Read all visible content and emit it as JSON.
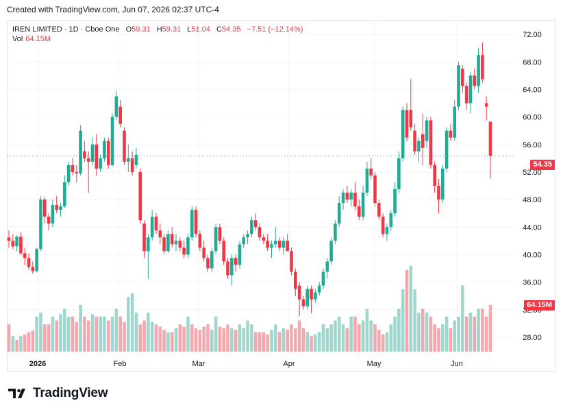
{
  "caption": "Created with TradingView.com, Jun 07, 2026 02:37 UTC-4",
  "brand": {
    "name": "TradingView"
  },
  "legend": {
    "symbol": "IREN LIMITED · 1D · Cboe One",
    "open_label": "O",
    "open": "59.31",
    "high_label": "H",
    "high": "59.31",
    "low_label": "L",
    "low": "51.04",
    "close_label": "C",
    "close": "54.35",
    "change": "−7.51 (−12.14%)",
    "vol_label": "Vol",
    "vol": "64.15M"
  },
  "price_tag": "54.35",
  "volume_tag": "64.15M",
  "colors": {
    "up": "#22ab94",
    "down": "#f23645",
    "up_vol": "#9fd6cd",
    "down_vol": "#f4a8ae",
    "grid": "#f0f3fa",
    "text": "#131722"
  },
  "chart_data": {
    "type": "candlestick",
    "x_labels": [
      "2026",
      "Feb",
      "Mar",
      "Apr",
      "May",
      "Jun"
    ],
    "y_ticks": [
      28,
      32,
      36,
      40,
      44,
      48,
      52,
      56,
      60,
      64,
      68,
      72
    ],
    "ylim": [
      26,
      74
    ],
    "last_price": 54.35,
    "candles": [
      {
        "o": 42.5,
        "h": 43.5,
        "l": 41.0,
        "c": 42.0
      },
      {
        "o": 42.0,
        "h": 43.0,
        "l": 40.8,
        "c": 41.2
      },
      {
        "o": 41.2,
        "h": 42.8,
        "l": 40.5,
        "c": 42.6
      },
      {
        "o": 42.6,
        "h": 43.2,
        "l": 40.0,
        "c": 40.2
      },
      {
        "o": 40.2,
        "h": 41.0,
        "l": 38.5,
        "c": 39.5
      },
      {
        "o": 39.5,
        "h": 40.2,
        "l": 37.8,
        "c": 38.2
      },
      {
        "o": 38.2,
        "h": 39.0,
        "l": 37.2,
        "c": 37.6
      },
      {
        "o": 37.6,
        "h": 41.0,
        "l": 37.4,
        "c": 40.8
      },
      {
        "o": 40.8,
        "h": 48.5,
        "l": 40.5,
        "c": 48.0
      },
      {
        "o": 48.0,
        "h": 48.4,
        "l": 44.5,
        "c": 45.5
      },
      {
        "o": 45.5,
        "h": 46.0,
        "l": 43.5,
        "c": 44.5
      },
      {
        "o": 44.5,
        "h": 48.0,
        "l": 44.0,
        "c": 47.2
      },
      {
        "o": 47.2,
        "h": 48.5,
        "l": 46.0,
        "c": 46.5
      },
      {
        "o": 46.5,
        "h": 47.5,
        "l": 45.5,
        "c": 47.0
      },
      {
        "o": 47.0,
        "h": 51.5,
        "l": 46.8,
        "c": 50.5
      },
      {
        "o": 50.5,
        "h": 53.5,
        "l": 50.0,
        "c": 53.0
      },
      {
        "o": 53.0,
        "h": 54.0,
        "l": 51.5,
        "c": 52.0
      },
      {
        "o": 52.0,
        "h": 53.0,
        "l": 50.5,
        "c": 51.8
      },
      {
        "o": 51.8,
        "h": 58.8,
        "l": 51.5,
        "c": 58.0
      },
      {
        "o": 55.0,
        "h": 56.5,
        "l": 53.5,
        "c": 54.0
      },
      {
        "o": 54.0,
        "h": 55.0,
        "l": 49.0,
        "c": 53.5
      },
      {
        "o": 53.5,
        "h": 57.0,
        "l": 53.0,
        "c": 56.0
      },
      {
        "o": 56.0,
        "h": 57.5,
        "l": 51.5,
        "c": 52.5
      },
      {
        "o": 52.5,
        "h": 54.5,
        "l": 52.0,
        "c": 54.0
      },
      {
        "o": 54.0,
        "h": 57.0,
        "l": 53.5,
        "c": 56.5
      },
      {
        "o": 56.5,
        "h": 57.0,
        "l": 52.5,
        "c": 53.0
      },
      {
        "o": 53.0,
        "h": 60.5,
        "l": 52.8,
        "c": 60.0
      },
      {
        "o": 60.0,
        "h": 63.8,
        "l": 59.5,
        "c": 63.0
      },
      {
        "o": 61.5,
        "h": 62.5,
        "l": 58.5,
        "c": 59.0
      },
      {
        "o": 58.0,
        "h": 58.5,
        "l": 53.0,
        "c": 53.5
      },
      {
        "o": 53.5,
        "h": 56.0,
        "l": 52.0,
        "c": 54.0
      },
      {
        "o": 54.0,
        "h": 55.0,
        "l": 51.5,
        "c": 52.0
      },
      {
        "o": 53.0,
        "h": 55.5,
        "l": 52.5,
        "c": 54.5
      },
      {
        "o": 52.0,
        "h": 52.5,
        "l": 44.5,
        "c": 45.0
      },
      {
        "o": 44.5,
        "h": 45.0,
        "l": 39.5,
        "c": 40.5
      },
      {
        "o": 40.5,
        "h": 43.0,
        "l": 36.5,
        "c": 42.5
      },
      {
        "o": 42.5,
        "h": 46.5,
        "l": 42.0,
        "c": 45.5
      },
      {
        "o": 45.5,
        "h": 46.0,
        "l": 43.0,
        "c": 43.5
      },
      {
        "o": 43.5,
        "h": 44.5,
        "l": 41.5,
        "c": 42.5
      },
      {
        "o": 42.5,
        "h": 43.0,
        "l": 40.0,
        "c": 40.5
      },
      {
        "o": 40.5,
        "h": 43.5,
        "l": 40.2,
        "c": 43.0
      },
      {
        "o": 43.0,
        "h": 44.0,
        "l": 41.0,
        "c": 41.5
      },
      {
        "o": 41.5,
        "h": 43.0,
        "l": 40.5,
        "c": 42.0
      },
      {
        "o": 42.0,
        "h": 42.5,
        "l": 40.5,
        "c": 41.0
      },
      {
        "o": 41.0,
        "h": 42.0,
        "l": 39.5,
        "c": 40.0
      },
      {
        "o": 40.0,
        "h": 43.0,
        "l": 39.5,
        "c": 42.5
      },
      {
        "o": 42.5,
        "h": 47.0,
        "l": 42.0,
        "c": 46.5
      },
      {
        "o": 46.5,
        "h": 47.0,
        "l": 42.5,
        "c": 43.0
      },
      {
        "o": 43.0,
        "h": 43.5,
        "l": 40.5,
        "c": 41.0
      },
      {
        "o": 41.0,
        "h": 42.0,
        "l": 39.0,
        "c": 39.5
      },
      {
        "o": 39.5,
        "h": 40.0,
        "l": 37.5,
        "c": 38.0
      },
      {
        "o": 38.0,
        "h": 41.0,
        "l": 37.5,
        "c": 40.5
      },
      {
        "o": 40.5,
        "h": 44.5,
        "l": 40.0,
        "c": 44.0
      },
      {
        "o": 44.0,
        "h": 44.5,
        "l": 41.5,
        "c": 42.0
      },
      {
        "o": 42.0,
        "h": 42.5,
        "l": 38.5,
        "c": 39.0
      },
      {
        "o": 39.0,
        "h": 39.5,
        "l": 36.5,
        "c": 37.0
      },
      {
        "o": 37.0,
        "h": 40.0,
        "l": 35.5,
        "c": 39.5
      },
      {
        "o": 39.5,
        "h": 40.0,
        "l": 37.5,
        "c": 38.5
      },
      {
        "o": 38.5,
        "h": 42.0,
        "l": 38.0,
        "c": 41.5
      },
      {
        "o": 41.5,
        "h": 43.0,
        "l": 41.0,
        "c": 42.5
      },
      {
        "o": 42.5,
        "h": 43.5,
        "l": 41.5,
        "c": 43.0
      },
      {
        "o": 43.0,
        "h": 45.5,
        "l": 42.5,
        "c": 45.0
      },
      {
        "o": 45.0,
        "h": 46.0,
        "l": 43.5,
        "c": 44.0
      },
      {
        "o": 44.0,
        "h": 44.5,
        "l": 42.0,
        "c": 42.5
      },
      {
        "o": 42.5,
        "h": 43.0,
        "l": 41.5,
        "c": 42.0
      },
      {
        "o": 42.0,
        "h": 43.0,
        "l": 40.5,
        "c": 41.0
      },
      {
        "o": 41.0,
        "h": 42.0,
        "l": 39.5,
        "c": 41.5
      },
      {
        "o": 41.5,
        "h": 44.0,
        "l": 41.0,
        "c": 42.0
      },
      {
        "o": 42.0,
        "h": 42.5,
        "l": 40.5,
        "c": 41.0
      },
      {
        "o": 41.0,
        "h": 42.5,
        "l": 40.0,
        "c": 42.0
      },
      {
        "o": 42.0,
        "h": 43.0,
        "l": 40.5,
        "c": 40.5
      },
      {
        "o": 40.5,
        "h": 41.0,
        "l": 37.0,
        "c": 37.5
      },
      {
        "o": 37.5,
        "h": 38.0,
        "l": 34.0,
        "c": 35.0
      },
      {
        "o": 35.5,
        "h": 36.0,
        "l": 31.0,
        "c": 33.5
      },
      {
        "o": 33.5,
        "h": 34.0,
        "l": 32.0,
        "c": 32.5
      },
      {
        "o": 32.5,
        "h": 35.5,
        "l": 32.0,
        "c": 35.0
      },
      {
        "o": 35.0,
        "h": 35.5,
        "l": 31.5,
        "c": 33.5
      },
      {
        "o": 33.5,
        "h": 35.0,
        "l": 33.0,
        "c": 34.5
      },
      {
        "o": 34.5,
        "h": 36.0,
        "l": 34.0,
        "c": 35.5
      },
      {
        "o": 35.5,
        "h": 38.0,
        "l": 35.0,
        "c": 37.5
      },
      {
        "o": 37.5,
        "h": 39.5,
        "l": 36.5,
        "c": 39.0
      },
      {
        "o": 39.0,
        "h": 42.5,
        "l": 38.5,
        "c": 42.0
      },
      {
        "o": 42.0,
        "h": 45.0,
        "l": 41.5,
        "c": 44.5
      },
      {
        "o": 44.5,
        "h": 48.5,
        "l": 44.0,
        "c": 47.5
      },
      {
        "o": 47.5,
        "h": 49.5,
        "l": 46.5,
        "c": 49.0
      },
      {
        "o": 49.0,
        "h": 50.0,
        "l": 47.5,
        "c": 48.0
      },
      {
        "o": 48.0,
        "h": 49.5,
        "l": 47.0,
        "c": 49.0
      },
      {
        "o": 49.0,
        "h": 50.5,
        "l": 46.5,
        "c": 47.0
      },
      {
        "o": 47.0,
        "h": 48.0,
        "l": 45.0,
        "c": 45.5
      },
      {
        "o": 45.5,
        "h": 50.0,
        "l": 45.0,
        "c": 49.0
      },
      {
        "o": 49.0,
        "h": 53.5,
        "l": 48.5,
        "c": 52.5
      },
      {
        "o": 52.5,
        "h": 54.0,
        "l": 51.0,
        "c": 51.5
      },
      {
        "o": 51.5,
        "h": 52.0,
        "l": 47.0,
        "c": 47.5
      },
      {
        "o": 47.5,
        "h": 48.0,
        "l": 45.0,
        "c": 45.5
      },
      {
        "o": 45.5,
        "h": 46.0,
        "l": 42.5,
        "c": 43.0
      },
      {
        "o": 43.0,
        "h": 44.5,
        "l": 42.0,
        "c": 44.0
      },
      {
        "o": 44.0,
        "h": 46.5,
        "l": 43.5,
        "c": 46.0
      },
      {
        "o": 46.0,
        "h": 50.5,
        "l": 45.5,
        "c": 49.5
      },
      {
        "o": 49.5,
        "h": 55.0,
        "l": 49.0,
        "c": 54.0
      },
      {
        "o": 54.0,
        "h": 61.5,
        "l": 53.5,
        "c": 61.0
      },
      {
        "o": 61.0,
        "h": 62.0,
        "l": 56.5,
        "c": 57.0
      },
      {
        "o": 61.0,
        "h": 65.5,
        "l": 58.0,
        "c": 58.5
      },
      {
        "o": 58.0,
        "h": 59.0,
        "l": 54.5,
        "c": 55.0
      },
      {
        "o": 55.0,
        "h": 57.0,
        "l": 53.5,
        "c": 56.5
      },
      {
        "o": 57.5,
        "h": 60.5,
        "l": 53.0,
        "c": 55.5
      },
      {
        "o": 56.5,
        "h": 60.0,
        "l": 55.5,
        "c": 59.5
      },
      {
        "o": 59.5,
        "h": 60.0,
        "l": 52.5,
        "c": 53.0
      },
      {
        "o": 53.0,
        "h": 53.5,
        "l": 49.0,
        "c": 50.0
      },
      {
        "o": 50.0,
        "h": 51.0,
        "l": 46.0,
        "c": 48.0
      },
      {
        "o": 48.0,
        "h": 53.0,
        "l": 47.5,
        "c": 52.5
      },
      {
        "o": 52.5,
        "h": 58.5,
        "l": 52.0,
        "c": 58.0
      },
      {
        "o": 58.0,
        "h": 59.0,
        "l": 56.5,
        "c": 57.0
      },
      {
        "o": 57.0,
        "h": 62.5,
        "l": 56.5,
        "c": 61.5
      },
      {
        "o": 61.5,
        "h": 68.0,
        "l": 61.0,
        "c": 67.5
      },
      {
        "o": 67.0,
        "h": 67.5,
        "l": 63.5,
        "c": 64.5
      },
      {
        "o": 64.5,
        "h": 65.0,
        "l": 61.0,
        "c": 62.0
      },
      {
        "o": 62.0,
        "h": 66.5,
        "l": 60.5,
        "c": 66.0
      },
      {
        "o": 66.0,
        "h": 67.0,
        "l": 64.0,
        "c": 64.5
      },
      {
        "o": 64.5,
        "h": 70.0,
        "l": 63.5,
        "c": 69.0
      },
      {
        "o": 69.0,
        "h": 70.8,
        "l": 65.0,
        "c": 65.5
      },
      {
        "o": 62.0,
        "h": 63.0,
        "l": 59.5,
        "c": 61.5
      },
      {
        "o": 59.31,
        "h": 59.31,
        "l": 51.04,
        "c": 54.35
      }
    ],
    "volume_ylim": [
      0,
      11
    ],
    "volumes": [
      {
        "v": 3.5,
        "up": false
      },
      {
        "v": 2.0,
        "up": true
      },
      {
        "v": 1.5,
        "up": false
      },
      {
        "v": 2.0,
        "up": true
      },
      {
        "v": 2.2,
        "up": false
      },
      {
        "v": 2.5,
        "up": false
      },
      {
        "v": 2.7,
        "up": false
      },
      {
        "v": 4.5,
        "up": true
      },
      {
        "v": 5.0,
        "up": true
      },
      {
        "v": 3.5,
        "up": false
      },
      {
        "v": 3.5,
        "up": false
      },
      {
        "v": 4.5,
        "up": true
      },
      {
        "v": 4.0,
        "up": false
      },
      {
        "v": 4.8,
        "up": true
      },
      {
        "v": 5.5,
        "up": true
      },
      {
        "v": 4.5,
        "up": true
      },
      {
        "v": 4.5,
        "up": false
      },
      {
        "v": 3.8,
        "up": false
      },
      {
        "v": 6.0,
        "up": true
      },
      {
        "v": 4.5,
        "up": false
      },
      {
        "v": 4.0,
        "up": false
      },
      {
        "v": 4.8,
        "up": true
      },
      {
        "v": 4.5,
        "up": false
      },
      {
        "v": 4.5,
        "up": true
      },
      {
        "v": 4.5,
        "up": true
      },
      {
        "v": 4.0,
        "up": false
      },
      {
        "v": 4.5,
        "up": true
      },
      {
        "v": 5.5,
        "up": true
      },
      {
        "v": 4.5,
        "up": false
      },
      {
        "v": 3.8,
        "up": false
      },
      {
        "v": 7.0,
        "up": true
      },
      {
        "v": 7.5,
        "up": true
      },
      {
        "v": 5.0,
        "up": true
      },
      {
        "v": 3.5,
        "up": false
      },
      {
        "v": 4.0,
        "up": false
      },
      {
        "v": 5.0,
        "up": true
      },
      {
        "v": 3.8,
        "up": true
      },
      {
        "v": 3.5,
        "up": false
      },
      {
        "v": 3.2,
        "up": false
      },
      {
        "v": 2.8,
        "up": false
      },
      {
        "v": 2.5,
        "up": true
      },
      {
        "v": 2.5,
        "up": false
      },
      {
        "v": 3.0,
        "up": true
      },
      {
        "v": 3.5,
        "up": false
      },
      {
        "v": 3.2,
        "up": false
      },
      {
        "v": 4.5,
        "up": true
      },
      {
        "v": 3.5,
        "up": false
      },
      {
        "v": 3.0,
        "up": false
      },
      {
        "v": 2.8,
        "up": false
      },
      {
        "v": 3.2,
        "up": false
      },
      {
        "v": 3.5,
        "up": false
      },
      {
        "v": 2.8,
        "up": true
      },
      {
        "v": 4.5,
        "up": true
      },
      {
        "v": 3.2,
        "up": false
      },
      {
        "v": 3.0,
        "up": false
      },
      {
        "v": 3.5,
        "up": false
      },
      {
        "v": 3.0,
        "up": true
      },
      {
        "v": 2.8,
        "up": false
      },
      {
        "v": 3.5,
        "up": true
      },
      {
        "v": 3.0,
        "up": true
      },
      {
        "v": 4.0,
        "up": true
      },
      {
        "v": 3.5,
        "up": true
      },
      {
        "v": 2.5,
        "up": false
      },
      {
        "v": 2.5,
        "up": false
      },
      {
        "v": 2.5,
        "up": false
      },
      {
        "v": 2.2,
        "up": false
      },
      {
        "v": 2.8,
        "up": true
      },
      {
        "v": 3.5,
        "up": true
      },
      {
        "v": 2.5,
        "up": false
      },
      {
        "v": 3.0,
        "up": true
      },
      {
        "v": 2.8,
        "up": false
      },
      {
        "v": 3.5,
        "up": false
      },
      {
        "v": 3.0,
        "up": false
      },
      {
        "v": 4.0,
        "up": false
      },
      {
        "v": 3.0,
        "up": false
      },
      {
        "v": 2.5,
        "up": true
      },
      {
        "v": 2.0,
        "up": false
      },
      {
        "v": 2.2,
        "up": true
      },
      {
        "v": 2.5,
        "up": true
      },
      {
        "v": 3.5,
        "up": true
      },
      {
        "v": 3.0,
        "up": true
      },
      {
        "v": 3.5,
        "up": true
      },
      {
        "v": 4.0,
        "up": true
      },
      {
        "v": 4.5,
        "up": true
      },
      {
        "v": 3.5,
        "up": true
      },
      {
        "v": 3.0,
        "up": false
      },
      {
        "v": 4.5,
        "up": true
      },
      {
        "v": 4.5,
        "up": false
      },
      {
        "v": 3.5,
        "up": false
      },
      {
        "v": 4.0,
        "up": true
      },
      {
        "v": 5.5,
        "up": true
      },
      {
        "v": 4.0,
        "up": true
      },
      {
        "v": 3.5,
        "up": false
      },
      {
        "v": 2.8,
        "up": false
      },
      {
        "v": 2.2,
        "up": false
      },
      {
        "v": 2.5,
        "up": true
      },
      {
        "v": 3.5,
        "up": true
      },
      {
        "v": 4.5,
        "up": true
      },
      {
        "v": 5.5,
        "up": true
      },
      {
        "v": 8.0,
        "up": true
      },
      {
        "v": 10.5,
        "up": false
      },
      {
        "v": 11.0,
        "up": true
      },
      {
        "v": 8.0,
        "up": true
      },
      {
        "v": 5.0,
        "up": true
      },
      {
        "v": 5.5,
        "up": false
      },
      {
        "v": 5.0,
        "up": true
      },
      {
        "v": 4.5,
        "up": false
      },
      {
        "v": 3.5,
        "up": false
      },
      {
        "v": 3.0,
        "up": false
      },
      {
        "v": 3.5,
        "up": true
      },
      {
        "v": 4.5,
        "up": true
      },
      {
        "v": 3.0,
        "up": false
      },
      {
        "v": 4.0,
        "up": true
      },
      {
        "v": 4.5,
        "up": true
      },
      {
        "v": 8.5,
        "up": true
      },
      {
        "v": 4.5,
        "up": false
      },
      {
        "v": 5.0,
        "up": true
      },
      {
        "v": 4.5,
        "up": false
      },
      {
        "v": 5.5,
        "up": true
      },
      {
        "v": 5.5,
        "up": false
      },
      {
        "v": 4.5,
        "up": false
      },
      {
        "v": 6.0,
        "up": false
      }
    ]
  }
}
